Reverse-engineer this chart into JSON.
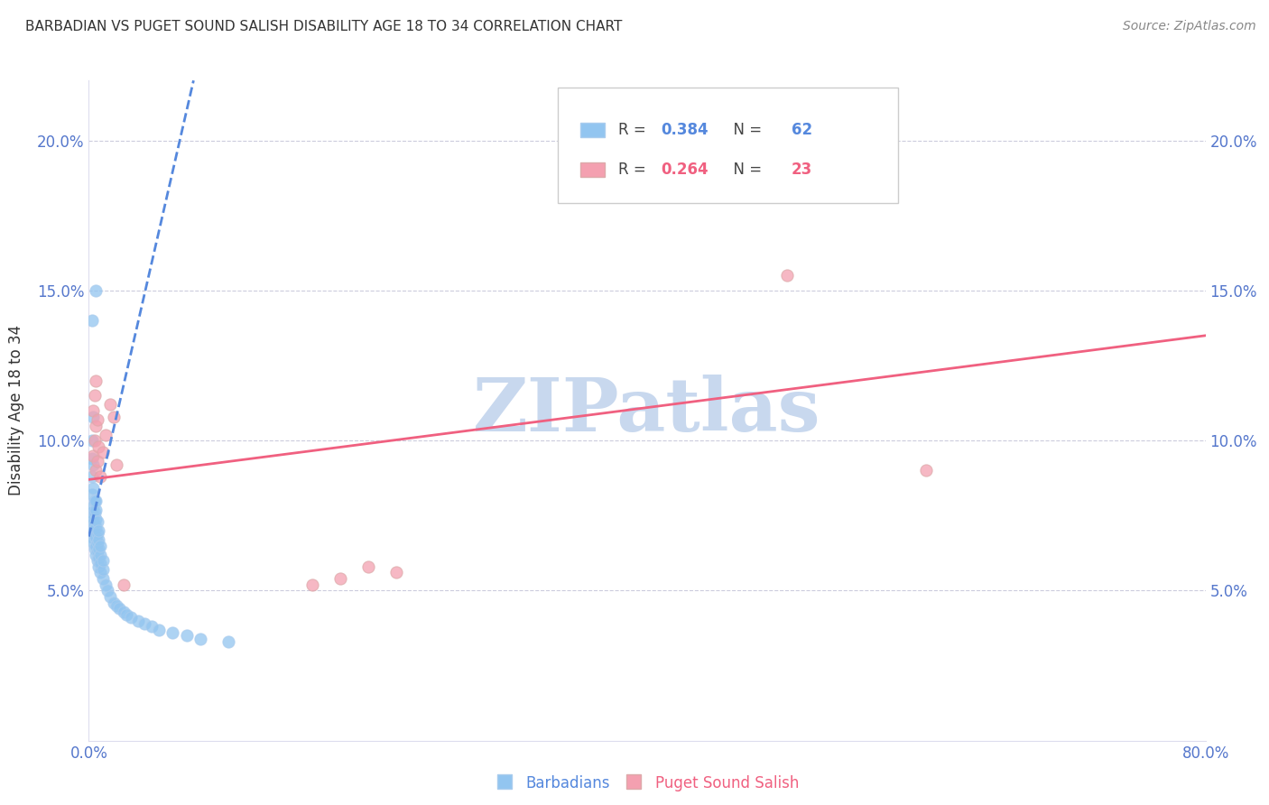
{
  "title": "BARBADIAN VS PUGET SOUND SALISH DISABILITY AGE 18 TO 34 CORRELATION CHART",
  "source": "Source: ZipAtlas.com",
  "ylabel": "Disability Age 18 to 34",
  "ytick_labels": [
    "5.0%",
    "10.0%",
    "15.0%",
    "20.0%"
  ],
  "ytick_values": [
    0.05,
    0.1,
    0.15,
    0.2
  ],
  "xlim": [
    0.0,
    0.8
  ],
  "ylim": [
    0.0,
    0.22
  ],
  "watermark": "ZIPatlas",
  "blue_R": 0.384,
  "blue_N": 62,
  "pink_R": 0.264,
  "pink_N": 23,
  "blue_color": "#92C5F0",
  "pink_color": "#F4A0B0",
  "blue_line_color": "#5588DD",
  "pink_line_color": "#F06080",
  "blue_text_color": "#5588DD",
  "pink_text_color": "#F06080",
  "axis_color": "#5577CC",
  "grid_color": "#CCCCDD",
  "title_color": "#333333",
  "watermark_color": "#C8D8EE",
  "source_color": "#888888",
  "blue_scatter_x": [
    0.002,
    0.002,
    0.002,
    0.002,
    0.002,
    0.002,
    0.002,
    0.002,
    0.003,
    0.003,
    0.003,
    0.003,
    0.003,
    0.003,
    0.003,
    0.004,
    0.004,
    0.004,
    0.004,
    0.004,
    0.005,
    0.005,
    0.005,
    0.005,
    0.005,
    0.005,
    0.005,
    0.005,
    0.006,
    0.006,
    0.006,
    0.006,
    0.006,
    0.007,
    0.007,
    0.007,
    0.007,
    0.007,
    0.008,
    0.008,
    0.008,
    0.008,
    0.01,
    0.01,
    0.01,
    0.012,
    0.013,
    0.015,
    0.018,
    0.02,
    0.022,
    0.025,
    0.027,
    0.03,
    0.035,
    0.04,
    0.045,
    0.05,
    0.06,
    0.07,
    0.08,
    0.1
  ],
  "blue_scatter_y": [
    0.068,
    0.072,
    0.076,
    0.082,
    0.088,
    0.094,
    0.1,
    0.14,
    0.066,
    0.07,
    0.074,
    0.078,
    0.084,
    0.092,
    0.108,
    0.064,
    0.068,
    0.072,
    0.076,
    0.08,
    0.062,
    0.065,
    0.068,
    0.071,
    0.074,
    0.077,
    0.08,
    0.15,
    0.06,
    0.063,
    0.066,
    0.069,
    0.073,
    0.058,
    0.061,
    0.064,
    0.067,
    0.07,
    0.056,
    0.059,
    0.062,
    0.065,
    0.054,
    0.057,
    0.06,
    0.052,
    0.05,
    0.048,
    0.046,
    0.045,
    0.044,
    0.043,
    0.042,
    0.041,
    0.04,
    0.039,
    0.038,
    0.037,
    0.036,
    0.035,
    0.034,
    0.033
  ],
  "pink_scatter_x": [
    0.003,
    0.003,
    0.004,
    0.004,
    0.005,
    0.005,
    0.005,
    0.006,
    0.006,
    0.007,
    0.008,
    0.01,
    0.012,
    0.015,
    0.018,
    0.02,
    0.025,
    0.16,
    0.18,
    0.2,
    0.22,
    0.5,
    0.6
  ],
  "pink_scatter_y": [
    0.095,
    0.11,
    0.1,
    0.115,
    0.09,
    0.105,
    0.12,
    0.093,
    0.107,
    0.098,
    0.088,
    0.096,
    0.102,
    0.112,
    0.108,
    0.092,
    0.052,
    0.052,
    0.054,
    0.058,
    0.056,
    0.155,
    0.09
  ],
  "blue_trend_x0": 0.0,
  "blue_trend_x1": 0.075,
  "blue_trend_y0": 0.068,
  "blue_trend_y1": 0.22,
  "pink_trend_x0": 0.0,
  "pink_trend_x1": 0.8,
  "pink_trend_y0": 0.087,
  "pink_trend_y1": 0.135
}
